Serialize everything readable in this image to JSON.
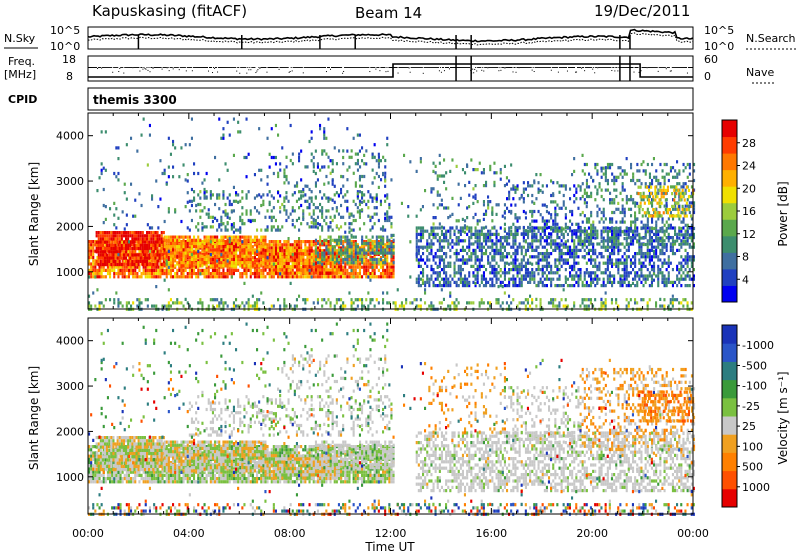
{
  "header": {
    "station": "Kapuskasing (fitACF)",
    "beam": "Beam 14",
    "date": "19/Dec/2011"
  },
  "top_panels": {
    "nsky_label": "N.Sky",
    "nsearch_label": "N.Search",
    "nsky_ticks": [
      "10^5",
      "10^0"
    ],
    "nsearch_ticks": [
      "10^5",
      "10^0"
    ],
    "freq_label_1": "Freq.",
    "freq_label_2": "[MHz]",
    "freq_ticks": [
      "18",
      "8"
    ],
    "nave_ticks": [
      "60",
      "0"
    ],
    "nave_label": "Nave",
    "cpid_label": "CPID",
    "cpid_value": "themis 3300"
  },
  "colors": {
    "power": [
      "#0000f0",
      "#2040c0",
      "#3f6fa0",
      "#3c8d6e",
      "#5aa84c",
      "#9ccc3c",
      "#f0e000",
      "#ffb000",
      "#ff7800",
      "#ff3c00",
      "#e60000"
    ],
    "velocity": [
      "#1a33b8",
      "#2a55c8",
      "#2c7d80",
      "#3a9a3a",
      "#7ac040",
      "#c8c8c8",
      "#f0a020",
      "#ff8000",
      "#ff5000",
      "#e60000"
    ],
    "ground_scatter": "#c8c8c8"
  },
  "chart_data": [
    {
      "type": "heatmap",
      "name": "power",
      "ylabel": "Slant Range [km]",
      "ylim": [
        180,
        4500
      ],
      "yticks": [
        1000,
        2000,
        3000,
        4000
      ],
      "xlim": [
        0,
        24
      ],
      "xticks": [
        "00:00",
        "04:00",
        "08:00",
        "12:00",
        "16:00",
        "20:00",
        "00:00"
      ],
      "colorbar": {
        "label": "Power [dB]",
        "ticks": [
          "4",
          "8",
          "12",
          "16",
          "20",
          "24",
          "28"
        ],
        "range": [
          0,
          30
        ]
      }
    },
    {
      "type": "heatmap",
      "name": "velocity",
      "ylabel": "Slant Range [km]",
      "ylim": [
        180,
        4500
      ],
      "yticks": [
        1000,
        2000,
        3000,
        4000
      ],
      "xlim": [
        0,
        24
      ],
      "xticks": [
        "00:00",
        "04:00",
        "08:00",
        "12:00",
        "16:00",
        "20:00",
        "00:00"
      ],
      "xlabel": "Time UT",
      "colorbar": {
        "label": "Velocity [m s⁻¹]",
        "ticks": [
          "1000",
          "500",
          "100",
          "25",
          "-25",
          "-100",
          "-500",
          "-1000"
        ],
        "range": [
          -1000,
          1000
        ]
      }
    }
  ]
}
